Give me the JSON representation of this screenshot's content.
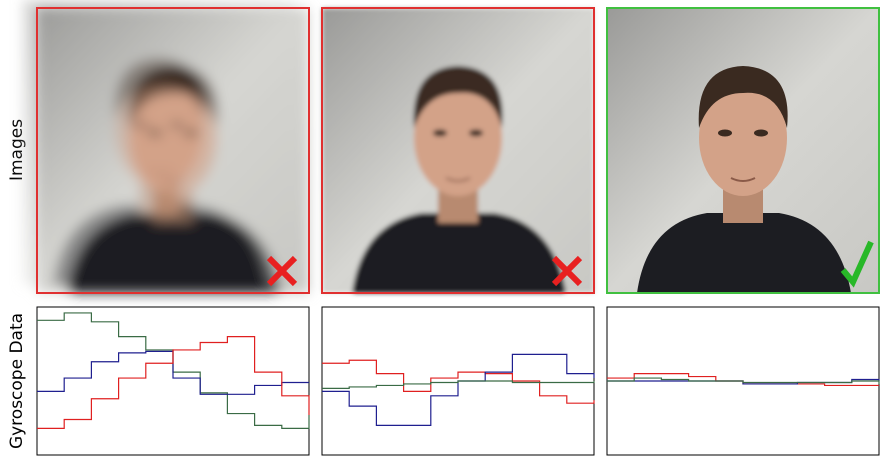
{
  "row_labels": [
    "Images",
    "Gyroscope Data"
  ],
  "chart_data": [
    {
      "type": "line",
      "x": [
        0,
        0.1,
        0.2,
        0.3,
        0.4,
        0.5,
        0.6,
        0.7,
        0.8,
        0.9,
        1
      ],
      "xlim": [
        0,
        1
      ],
      "ylim": [
        0,
        1
      ],
      "series": [
        {
          "color": "#3a6b45",
          "values": [
            0.91,
            0.96,
            0.9,
            0.8,
            0.71,
            0.56,
            0.42,
            0.28,
            0.2,
            0.18,
            0.27
          ]
        },
        {
          "color": "#1f1f8f",
          "values": [
            0.43,
            0.52,
            0.63,
            0.69,
            0.7,
            0.52,
            0.41,
            0.41,
            0.47,
            0.49,
            0.49
          ]
        },
        {
          "color": "#e02020",
          "values": [
            0.18,
            0.24,
            0.38,
            0.52,
            0.62,
            0.71,
            0.76,
            0.8,
            0.56,
            0.4,
            0.27
          ]
        }
      ]
    },
    {
      "type": "line",
      "x": [
        0,
        0.1,
        0.2,
        0.3,
        0.4,
        0.5,
        0.6,
        0.7,
        0.8,
        0.9,
        1
      ],
      "xlim": [
        0,
        1
      ],
      "ylim": [
        0,
        1
      ],
      "series": [
        {
          "color": "#e02020",
          "values": [
            0.62,
            0.64,
            0.55,
            0.43,
            0.52,
            0.56,
            0.55,
            0.5,
            0.4,
            0.35,
            0.37
          ]
        },
        {
          "color": "#1f1f8f",
          "values": [
            0.43,
            0.33,
            0.2,
            0.2,
            0.4,
            0.5,
            0.56,
            0.68,
            0.68,
            0.55,
            0.52
          ]
        },
        {
          "color": "#3a6b45",
          "values": [
            0.45,
            0.46,
            0.47,
            0.48,
            0.49,
            0.5,
            0.5,
            0.49,
            0.49,
            0.49,
            0.5
          ]
        }
      ]
    },
    {
      "type": "line",
      "x": [
        0,
        0.1,
        0.2,
        0.3,
        0.4,
        0.5,
        0.6,
        0.7,
        0.8,
        0.9,
        1
      ],
      "xlim": [
        0,
        1
      ],
      "ylim": [
        0,
        1
      ],
      "series": [
        {
          "color": "#e02020",
          "values": [
            0.52,
            0.55,
            0.55,
            0.53,
            0.5,
            0.48,
            0.48,
            0.48,
            0.47,
            0.47,
            0.47
          ]
        },
        {
          "color": "#1f1f8f",
          "values": [
            0.5,
            0.5,
            0.5,
            0.5,
            0.5,
            0.48,
            0.48,
            0.49,
            0.49,
            0.51,
            0.5
          ]
        },
        {
          "color": "#3a6b45",
          "values": [
            0.5,
            0.52,
            0.51,
            0.5,
            0.5,
            0.49,
            0.49,
            0.49,
            0.49,
            0.5,
            0.48
          ]
        }
      ]
    }
  ]
}
